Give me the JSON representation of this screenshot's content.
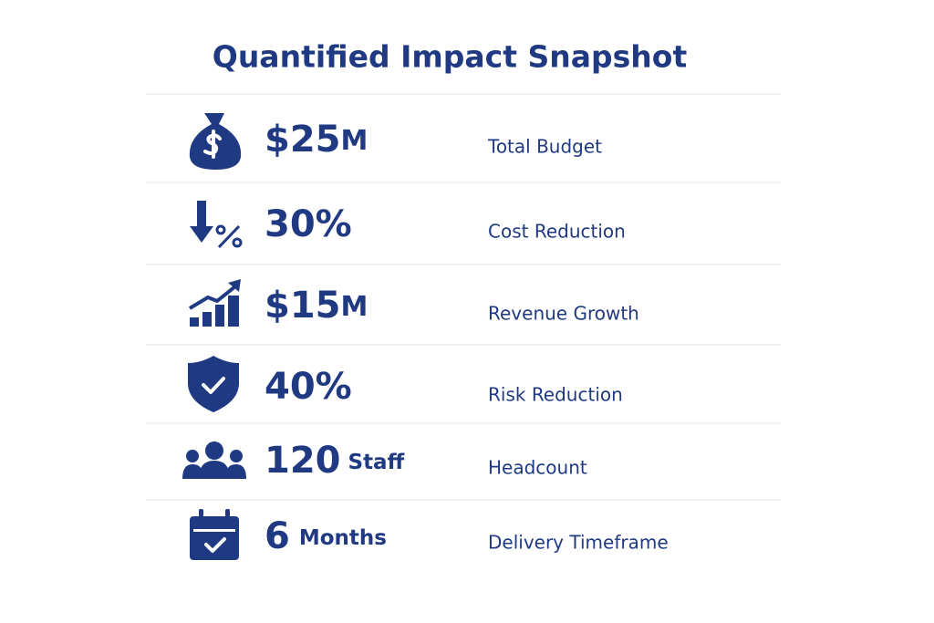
{
  "header": {
    "title": "Quantified Impact Snapshot"
  },
  "rows": [
    {
      "main": "$25",
      "unit": "M",
      "label": "Total Budget"
    },
    {
      "main": "30%",
      "label": "Cost Reduction"
    },
    {
      "main": "$15",
      "unit": "M",
      "label": "Revenue Growth"
    },
    {
      "main": "40%",
      "label": "Risk Reduction"
    },
    {
      "main": "120",
      "unit": "Staff",
      "label": "Headcount"
    },
    {
      "main": "6",
      "unit": "Months",
      "label": "Delivery Timeframe"
    }
  ]
}
